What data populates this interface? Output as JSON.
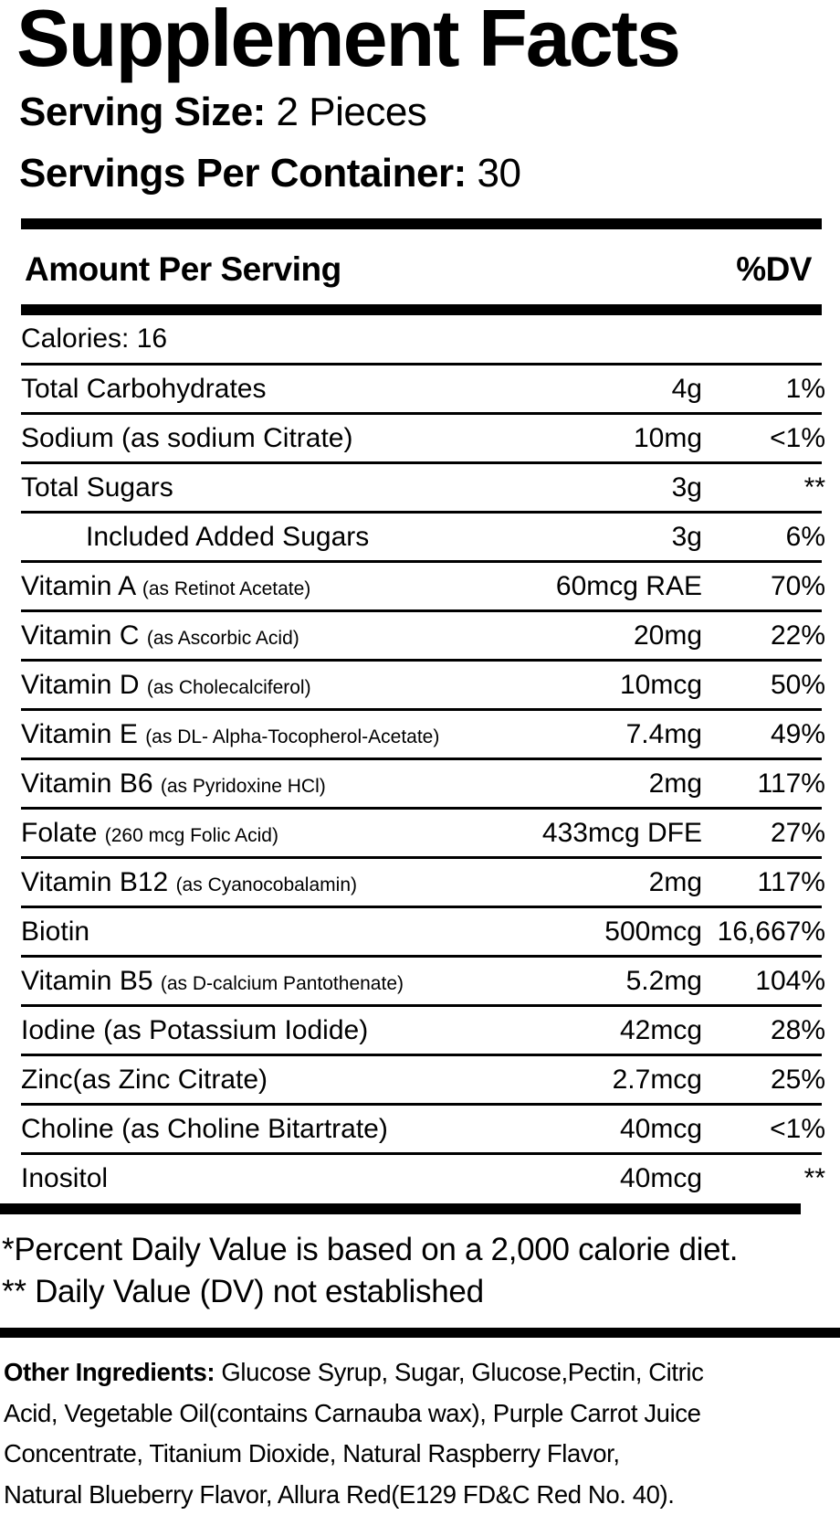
{
  "title": "Supplement Facts",
  "serving_size": {
    "label": "Serving Size:",
    "value": "2 Pieces"
  },
  "servings_per_container": {
    "label": "Servings Per Container:",
    "value": "30"
  },
  "header": {
    "amount": "Amount Per Serving",
    "dv": "%DV"
  },
  "calories": "Calories: 16",
  "rows": [
    {
      "name": "Total Carbohydrates",
      "sub": "",
      "amount": "4g",
      "dv": "1%"
    },
    {
      "name": "Sodium (as sodium Citrate)",
      "sub": "",
      "amount": "10mg",
      "dv": "<1%"
    },
    {
      "name": "Total Sugars",
      "sub": "",
      "amount": "3g",
      "dv": "**"
    },
    {
      "name": "Included Added Sugars",
      "sub": "",
      "amount": "3g",
      "dv": "6%"
    },
    {
      "name": "Vitamin A",
      "sub": "(as Retinot Acetate)",
      "amount": "60mcg RAE",
      "dv": "70%"
    },
    {
      "name": "Vitamin C",
      "sub": "(as Ascorbic Acid)",
      "amount": "20mg",
      "dv": "22%"
    },
    {
      "name": "Vitamin D",
      "sub": "(as Cholecalciferol)",
      "amount": "10mcg",
      "dv": "50%"
    },
    {
      "name": "Vitamin E",
      "sub": "(as DL- Alpha-Tocopherol-Acetate)",
      "amount": "7.4mg",
      "dv": "49%"
    },
    {
      "name": "Vitamin B6",
      "sub": "(as Pyridoxine HCl)",
      "amount": "2mg",
      "dv": "117%"
    },
    {
      "name": "Folate",
      "sub": "(260 mcg Folic Acid)",
      "amount": "433mcg DFE",
      "dv": "27%"
    },
    {
      "name": "Vitamin B12",
      "sub": "(as Cyanocobalamin)",
      "amount": "2mg",
      "dv": "117%"
    },
    {
      "name": "Biotin",
      "sub": "",
      "amount": "500mcg",
      "dv": "16,667%"
    },
    {
      "name": "Vitamin B5",
      "sub": "(as D-calcium Pantothenate)",
      "amount": "5.2mg",
      "dv": "104%"
    },
    {
      "name": "Iodine (as Potassium Iodide)",
      "sub": "",
      "amount": "42mcg",
      "dv": "28%"
    },
    {
      "name": "Zinc(as Zinc Citrate)",
      "sub": "",
      "amount": "2.7mcg",
      "dv": "25%"
    },
    {
      "name": "Choline (as Choline Bitartrate)",
      "sub": "",
      "amount": "40mcg",
      "dv": "<1%"
    },
    {
      "name": "Inositol",
      "sub": "",
      "amount": "40mcg",
      "dv": "**"
    }
  ],
  "footnotes": [
    "*Percent Daily Value is based on a 2,000 calorie diet.",
    "** Daily Value (DV) not established"
  ],
  "other_ingredients": {
    "label": "Other Ingredients:",
    "lines": [
      " Glucose Syrup, Sugar, Glucose,Pectin, Citric",
      "Acid,  Vegetable Oil(contains Carnauba wax), Purple Carrot Juice",
      "Concentrate, Titanium Dioxide, Natural Raspberry Flavor,",
      "Natural Blueberry Flavor, Allura Red(E129 FD&C Red No. 40)."
    ]
  }
}
